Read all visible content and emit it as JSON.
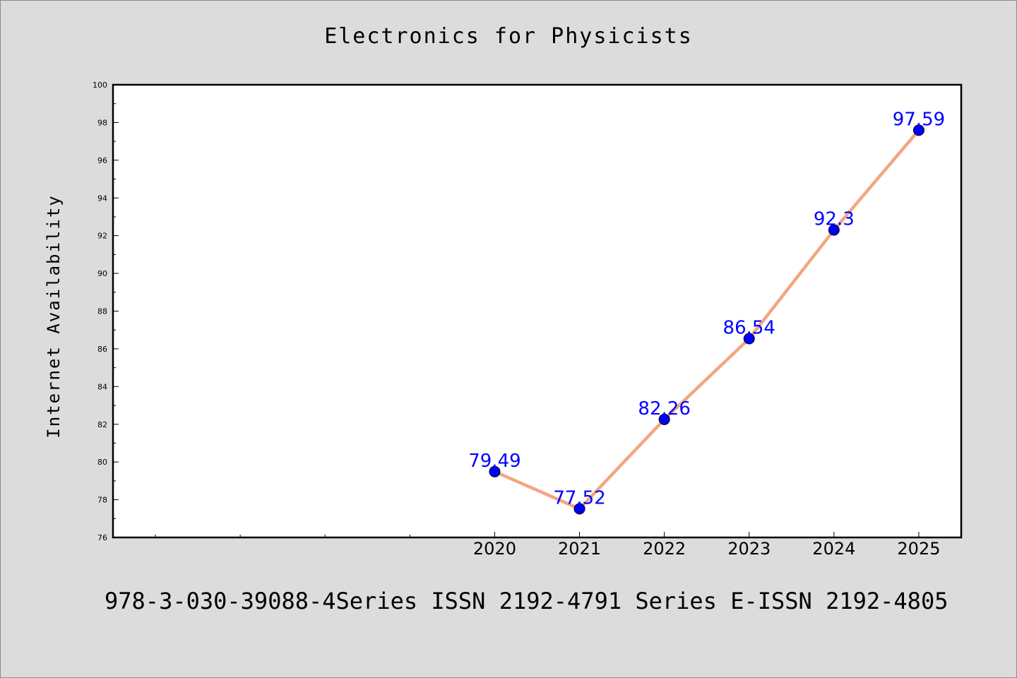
{
  "chart_data": {
    "type": "line",
    "title": "Electronics for Physicists",
    "xlabel": "",
    "ylabel": "Internet Availability",
    "x": [
      2020,
      2021,
      2022,
      2023,
      2024,
      2025
    ],
    "series": [
      {
        "name": "",
        "values": [
          79.49,
          77.52,
          82.26,
          86.54,
          92.3,
          97.59
        ]
      }
    ],
    "data_labels": [
      "79.49",
      "77.52",
      "82.26",
      "86.54",
      "92.3",
      "97.59"
    ],
    "x_tick_labels": [
      "2020",
      "2021",
      "2022",
      "2023",
      "2024",
      "2025"
    ],
    "xlim": [
      2015.5,
      2025.5
    ],
    "ylim": [
      76,
      100
    ],
    "y_ticks": [
      76,
      78,
      80,
      82,
      84,
      86,
      88,
      90,
      92,
      94,
      96,
      98,
      100
    ],
    "x_minor_ticks": [
      2016,
      2017,
      2018,
      2019
    ],
    "grid": false,
    "legend": "none",
    "colors": {
      "line": "#f4a582",
      "marker": "#0000ff",
      "data_label": "#0000ff",
      "background": "#dcdcdc",
      "plot_background": "#ffffff"
    }
  },
  "footer": {
    "text": "978-3-030-39088-4Series ISSN 2192-4791 Series E-ISSN 2192-4805"
  }
}
